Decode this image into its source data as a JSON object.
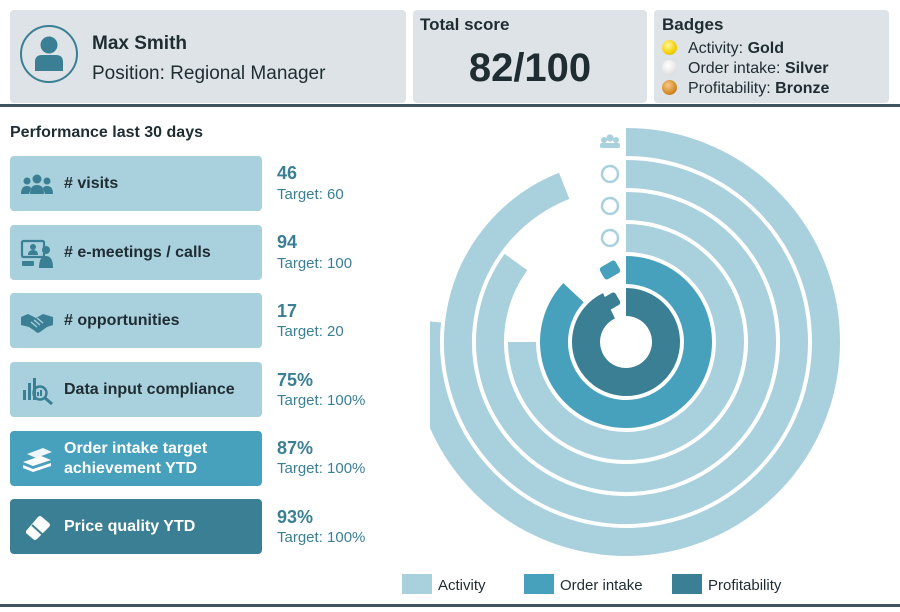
{
  "colors": {
    "activity": "#a9d0dd",
    "order_intake": "#47a0bc",
    "profitability": "#3a7f93",
    "accent_text": "#3a7f93",
    "panel_bg": "#dde3e6",
    "gold": "#f5d000",
    "silver": "#e6e6e6",
    "bronze": "#d58b27"
  },
  "profile": {
    "avatar_icon": "person-icon",
    "name": "Max Smith",
    "position": "Position: Regional Manager"
  },
  "score": {
    "label": "Total score",
    "value": "82/100"
  },
  "badges": {
    "title": "Badges",
    "items": [
      {
        "category": "Activity:",
        "level": "Gold",
        "icon": "gold-medal-icon"
      },
      {
        "category": "Order intake:",
        "level": "Silver",
        "icon": "silver-medal-icon"
      },
      {
        "category": "Profitability:",
        "level": "Bronze",
        "icon": "bronze-medal-icon"
      }
    ]
  },
  "performance": {
    "title": "Performance last 30 days",
    "metrics": [
      {
        "label": "# visits",
        "value": "46",
        "target": "Target: 60",
        "icon": "people-group-icon",
        "group": "activity"
      },
      {
        "label": "# e-meetings / calls",
        "value": "94",
        "target": "Target: 100",
        "icon": "video-call-icon",
        "group": "activity"
      },
      {
        "label": "# opportunities",
        "value": "17",
        "target": "Target: 20",
        "icon": "handshake-icon",
        "group": "activity"
      },
      {
        "label": "Data input compliance",
        "value": "75%",
        "target": "Target: 100%",
        "icon": "chart-magnifier-icon",
        "group": "activity"
      },
      {
        "label": "Order intake target achievement YTD",
        "value": "87%",
        "target": "Target: 100%",
        "icon": "money-stack-icon",
        "group": "order_intake"
      },
      {
        "label": "Price quality YTD",
        "value": "93%",
        "target": "Target: 100%",
        "icon": "price-tag-icon",
        "group": "profitability"
      }
    ]
  },
  "chart_data": {
    "type": "radial-bar",
    "series": [
      {
        "metric": "# visits",
        "value": 46,
        "target": 60,
        "group": "activity"
      },
      {
        "metric": "# e-meetings / calls",
        "value": 94,
        "target": 100,
        "group": "activity"
      },
      {
        "metric": "# opportunities",
        "value": 17,
        "target": 20,
        "group": "activity"
      },
      {
        "metric": "Data input compliance",
        "value": 75,
        "target": 100,
        "group": "activity"
      },
      {
        "metric": "Order intake target achievement YTD",
        "value": 87,
        "target": 100,
        "group": "order_intake"
      },
      {
        "metric": "Price quality YTD",
        "value": 93,
        "target": 100,
        "group": "profitability"
      }
    ],
    "legend": [
      {
        "name": "Activity",
        "group": "activity"
      },
      {
        "name": "Order intake",
        "group": "order_intake"
      },
      {
        "name": "Profitability",
        "group": "profitability"
      }
    ],
    "legend_position": "bottom"
  }
}
